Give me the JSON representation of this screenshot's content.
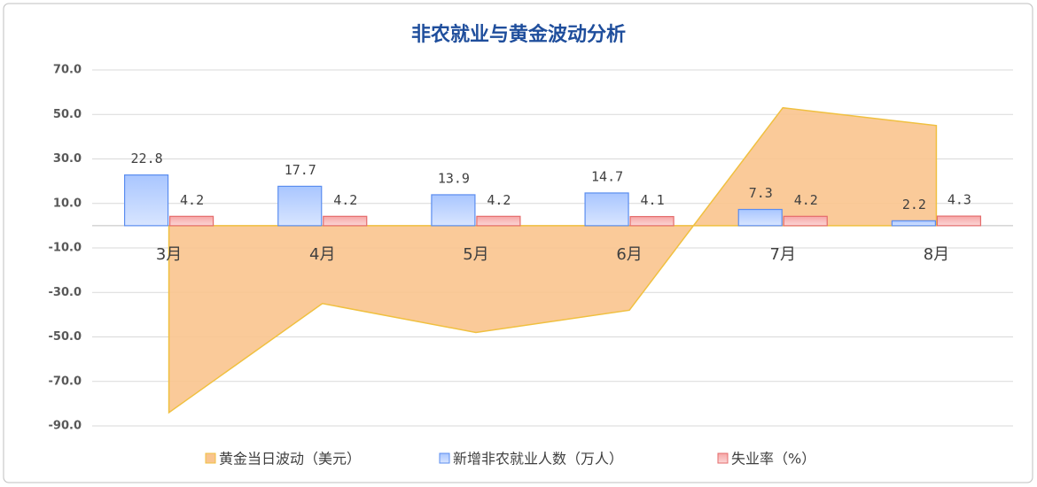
{
  "chart_data": {
    "type": "bar",
    "title": "非农就业与黄金波动分析",
    "categories": [
      "3月",
      "4月",
      "5月",
      "6月",
      "7月",
      "8月"
    ],
    "series": [
      {
        "name": "黄金当日波动（美元）",
        "type": "area",
        "color": "#f9c48e",
        "values": [
          -84,
          -35,
          -48,
          -38,
          53,
          45
        ]
      },
      {
        "name": "新增非农就业人数（万人）",
        "type": "bar",
        "color": "#5b8def",
        "values": [
          22.8,
          17.7,
          13.9,
          14.7,
          7.3,
          2.2
        ]
      },
      {
        "name": "失业率（%）",
        "type": "bar",
        "color": "#e46c6c",
        "values": [
          4.2,
          4.2,
          4.2,
          4.1,
          4.2,
          4.3
        ]
      }
    ],
    "ylim": [
      -90,
      70
    ],
    "yticks": [
      {
        "value": 70,
        "label": "70.0"
      },
      {
        "value": 50,
        "label": "50.0"
      },
      {
        "value": 30,
        "label": "30.0"
      },
      {
        "value": 10,
        "label": "10.0"
      },
      {
        "value": -10,
        "label": "-10.0"
      },
      {
        "value": -30,
        "label": "-30.0"
      },
      {
        "value": -50,
        "label": "-50.0"
      },
      {
        "value": -70,
        "label": "-70.0"
      },
      {
        "value": -90,
        "label": "-90.0"
      }
    ],
    "grid": true
  }
}
